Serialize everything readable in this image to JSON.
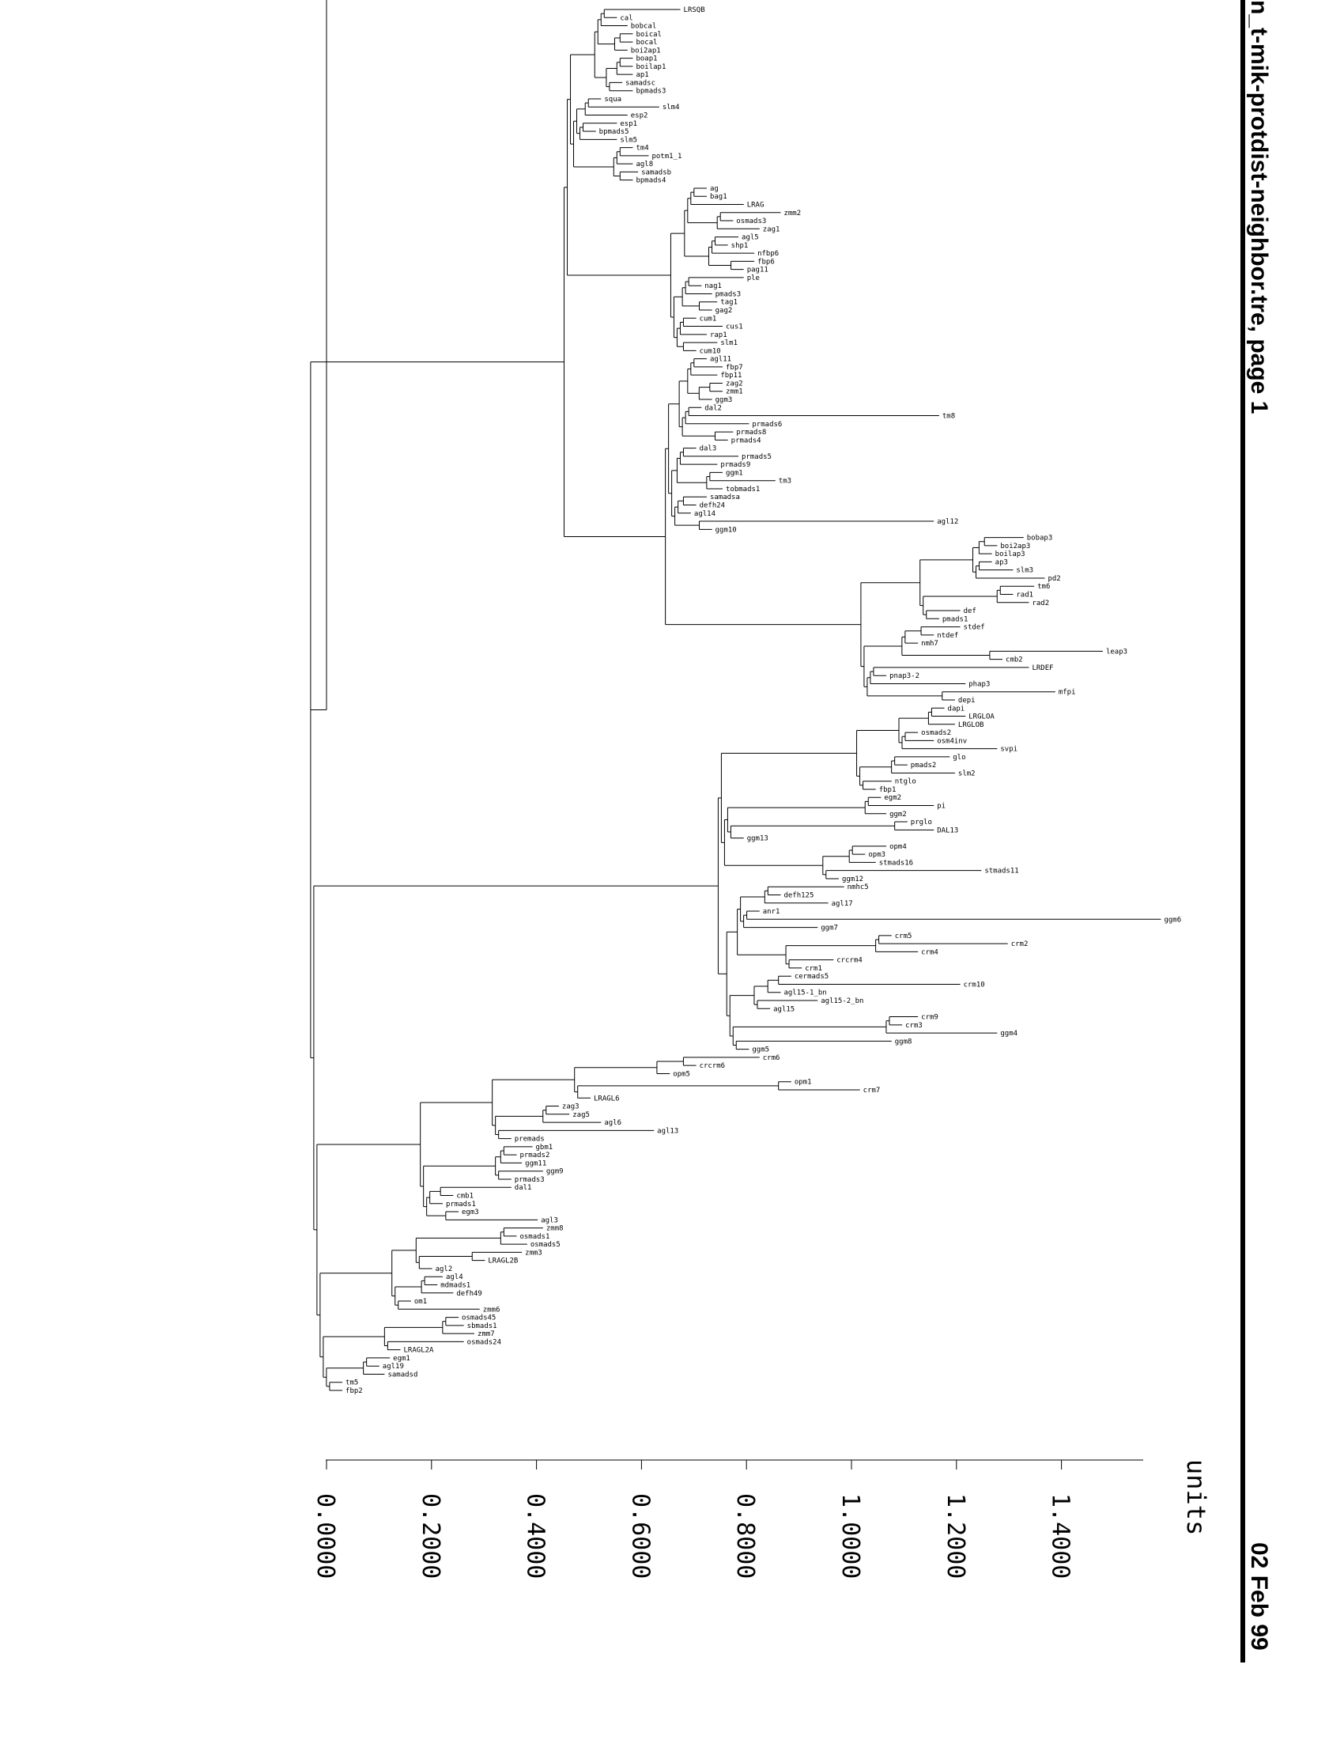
{
  "header": {
    "title": "n_t-mik-protdist-neighbor.tre, page 1",
    "date": "02 Feb 99"
  },
  "scale": {
    "units_label": "units",
    "ticks": [
      "0.0000",
      "0.2000",
      "0.4000",
      "0.6000",
      "0.8000",
      "1.0000",
      "1.2000",
      "1.4000"
    ]
  },
  "tree": {
    "leaves": [
      {
        "name": "LRSQB",
        "depth": 0.67
      },
      {
        "name": "cal",
        "depth": 0.55
      },
      {
        "name": "bobcal",
        "depth": 0.57
      },
      {
        "name": "boical",
        "depth": 0.58
      },
      {
        "name": "bocal",
        "depth": 0.58
      },
      {
        "name": "boi2ap1",
        "depth": 0.57
      },
      {
        "name": "boap1",
        "depth": 0.58
      },
      {
        "name": "boilap1",
        "depth": 0.58
      },
      {
        "name": "ap1",
        "depth": 0.58
      },
      {
        "name": "samadsc",
        "depth": 0.56
      },
      {
        "name": "bpmads3",
        "depth": 0.58
      },
      {
        "name": "squa",
        "depth": 0.52
      },
      {
        "name": "slm4",
        "depth": 0.63
      },
      {
        "name": "esp2",
        "depth": 0.57
      },
      {
        "name": "esp1",
        "depth": 0.55
      },
      {
        "name": "bpmads5",
        "depth": 0.51
      },
      {
        "name": "slm5",
        "depth": 0.55
      },
      {
        "name": "tm4",
        "depth": 0.58
      },
      {
        "name": "potm1_1",
        "depth": 0.61
      },
      {
        "name": "agl8",
        "depth": 0.58
      },
      {
        "name": "samadsb",
        "depth": 0.59
      },
      {
        "name": "bpmads4",
        "depth": 0.58
      },
      {
        "name": "ag",
        "depth": 0.72
      },
      {
        "name": "bag1",
        "depth": 0.72
      },
      {
        "name": "LRAG",
        "depth": 0.79
      },
      {
        "name": "zmm2",
        "depth": 0.86
      },
      {
        "name": "osmads3",
        "depth": 0.77
      },
      {
        "name": "zag1",
        "depth": 0.82
      },
      {
        "name": "agl5",
        "depth": 0.78
      },
      {
        "name": "shp1",
        "depth": 0.76
      },
      {
        "name": "nfbp6",
        "depth": 0.81
      },
      {
        "name": "fbp6",
        "depth": 0.81
      },
      {
        "name": "pag11",
        "depth": 0.79
      },
      {
        "name": "ple",
        "depth": 0.79
      },
      {
        "name": "nag1",
        "depth": 0.71
      },
      {
        "name": "pmads3",
        "depth": 0.73
      },
      {
        "name": "tag1",
        "depth": 0.74
      },
      {
        "name": "gag2",
        "depth": 0.73
      },
      {
        "name": "cum1",
        "depth": 0.7
      },
      {
        "name": "cus1",
        "depth": 0.75
      },
      {
        "name": "rap1",
        "depth": 0.72
      },
      {
        "name": "slm1",
        "depth": 0.74
      },
      {
        "name": "cum10",
        "depth": 0.7
      },
      {
        "name": "agl11",
        "depth": 0.72
      },
      {
        "name": "fbp7",
        "depth": 0.75
      },
      {
        "name": "fbp11",
        "depth": 0.74
      },
      {
        "name": "zag2",
        "depth": 0.75
      },
      {
        "name": "zmm1",
        "depth": 0.75
      },
      {
        "name": "ggm3",
        "depth": 0.73
      },
      {
        "name": "dal2",
        "depth": 0.71
      },
      {
        "name": "tm8",
        "depth": 1.16
      },
      {
        "name": "prmads6",
        "depth": 0.8
      },
      {
        "name": "prmads8",
        "depth": 0.77
      },
      {
        "name": "prmads4",
        "depth": 0.76
      },
      {
        "name": "dal3",
        "depth": 0.7
      },
      {
        "name": "prmads5",
        "depth": 0.78
      },
      {
        "name": "prmads9",
        "depth": 0.74
      },
      {
        "name": "ggm1",
        "depth": 0.75
      },
      {
        "name": "tm3",
        "depth": 0.85
      },
      {
        "name": "tobmads1",
        "depth": 0.75
      },
      {
        "name": "samadsa",
        "depth": 0.72
      },
      {
        "name": "defh24",
        "depth": 0.7
      },
      {
        "name": "agl14",
        "depth": 0.69
      },
      {
        "name": "agl12",
        "depth": 1.15
      },
      {
        "name": "ggm10",
        "depth": 0.73
      },
      {
        "name": "bobap3",
        "depth": 1.32
      },
      {
        "name": "boi2ap3",
        "depth": 1.27
      },
      {
        "name": "boilap3",
        "depth": 1.26
      },
      {
        "name": "ap3",
        "depth": 1.26
      },
      {
        "name": "slm3",
        "depth": 1.3
      },
      {
        "name": "pd2",
        "depth": 1.36
      },
      {
        "name": "tm6",
        "depth": 1.34
      },
      {
        "name": "rad1",
        "depth": 1.3
      },
      {
        "name": "rad2",
        "depth": 1.33
      },
      {
        "name": "def",
        "depth": 1.2
      },
      {
        "name": "pmads1",
        "depth": 1.16
      },
      {
        "name": "stdef",
        "depth": 1.2
      },
      {
        "name": "ntdef",
        "depth": 1.15
      },
      {
        "name": "nmh7",
        "depth": 1.12
      },
      {
        "name": "leap3",
        "depth": 1.47
      },
      {
        "name": "cmb2",
        "depth": 1.28
      },
      {
        "name": "LRDEF",
        "depth": 1.33
      },
      {
        "name": "pnap3-2",
        "depth": 1.06
      },
      {
        "name": "phap3",
        "depth": 1.21
      },
      {
        "name": "mfpi",
        "depth": 1.38
      },
      {
        "name": "depi",
        "depth": 1.19
      },
      {
        "name": "dapi",
        "depth": 1.17
      },
      {
        "name": "LRGLOA",
        "depth": 1.21
      },
      {
        "name": "LRGLOB",
        "depth": 1.19
      },
      {
        "name": "osmads2",
        "depth": 1.12
      },
      {
        "name": "osm4inv",
        "depth": 1.15
      },
      {
        "name": "svpi",
        "depth": 1.27
      },
      {
        "name": "glo",
        "depth": 1.18
      },
      {
        "name": "pmads2",
        "depth": 1.1
      },
      {
        "name": "slm2",
        "depth": 1.19
      },
      {
        "name": "ntglo",
        "depth": 1.07
      },
      {
        "name": "fbp1",
        "depth": 1.04
      },
      {
        "name": "egm2",
        "depth": 1.05
      },
      {
        "name": "pi",
        "depth": 1.15
      },
      {
        "name": "ggm2",
        "depth": 1.06
      },
      {
        "name": "prglo",
        "depth": 1.1
      },
      {
        "name": "DAL13",
        "depth": 1.15
      },
      {
        "name": "ggm13",
        "depth": 0.79
      },
      {
        "name": "opm4",
        "depth": 1.06
      },
      {
        "name": "opm3",
        "depth": 1.02
      },
      {
        "name": "stmads16",
        "depth": 1.04
      },
      {
        "name": "stmads11",
        "depth": 1.24
      },
      {
        "name": "ggm12",
        "depth": 0.97
      },
      {
        "name": "nmhc5",
        "depth": 0.98
      },
      {
        "name": "defh125",
        "depth": 0.86
      },
      {
        "name": "agl17",
        "depth": 0.95
      },
      {
        "name": "anr1",
        "depth": 0.82
      },
      {
        "name": "ggm6",
        "depth": 1.58
      },
      {
        "name": "ggm7",
        "depth": 0.93
      },
      {
        "name": "crm5",
        "depth": 1.07
      },
      {
        "name": "crm2",
        "depth": 1.29
      },
      {
        "name": "crm4",
        "depth": 1.12
      },
      {
        "name": "crcrm4",
        "depth": 0.96
      },
      {
        "name": "crm1",
        "depth": 0.9
      },
      {
        "name": "cermads5",
        "depth": 0.88
      },
      {
        "name": "crm10",
        "depth": 1.2
      },
      {
        "name": "agl15-1_bn",
        "depth": 0.86
      },
      {
        "name": "agl15-2_bn",
        "depth": 0.93
      },
      {
        "name": "agl15",
        "depth": 0.84
      },
      {
        "name": "crm9",
        "depth": 1.12
      },
      {
        "name": "crm3",
        "depth": 1.09
      },
      {
        "name": "ggm4",
        "depth": 1.27
      },
      {
        "name": "ggm8",
        "depth": 1.07
      },
      {
        "name": "ggm5",
        "depth": 0.8
      },
      {
        "name": "crm6",
        "depth": 0.82
      },
      {
        "name": "crcrm6",
        "depth": 0.7
      },
      {
        "name": "opm5",
        "depth": 0.65
      },
      {
        "name": "opm1",
        "depth": 0.88
      },
      {
        "name": "crm7",
        "depth": 1.01
      },
      {
        "name": "LRAGL6",
        "depth": 0.5
      },
      {
        "name": "zag3",
        "depth": 0.44
      },
      {
        "name": "zag5",
        "depth": 0.46
      },
      {
        "name": "agl6",
        "depth": 0.52
      },
      {
        "name": "agl13",
        "depth": 0.62
      },
      {
        "name": "premads",
        "depth": 0.35
      },
      {
        "name": "gbm1",
        "depth": 0.39
      },
      {
        "name": "prmads2",
        "depth": 0.36
      },
      {
        "name": "ggm11",
        "depth": 0.37
      },
      {
        "name": "ggm9",
        "depth": 0.41
      },
      {
        "name": "prmads3",
        "depth": 0.35
      },
      {
        "name": "dal1",
        "depth": 0.35
      },
      {
        "name": "cmb1",
        "depth": 0.24
      },
      {
        "name": "prmads1",
        "depth": 0.22
      },
      {
        "name": "egm3",
        "depth": 0.25
      },
      {
        "name": "agl3",
        "depth": 0.4
      },
      {
        "name": "zmm8",
        "depth": 0.41
      },
      {
        "name": "osmads1",
        "depth": 0.36
      },
      {
        "name": "osmads5",
        "depth": 0.38
      },
      {
        "name": "zmm3",
        "depth": 0.37
      },
      {
        "name": "LRAGL2B",
        "depth": 0.3
      },
      {
        "name": "agl2",
        "depth": 0.2
      },
      {
        "name": "agl4",
        "depth": 0.22
      },
      {
        "name": "mdmads1",
        "depth": 0.21
      },
      {
        "name": "defh49",
        "depth": 0.24
      },
      {
        "name": "om1",
        "depth": 0.16
      },
      {
        "name": "zmm6",
        "depth": 0.29
      },
      {
        "name": "osmads45",
        "depth": 0.25
      },
      {
        "name": "sbmads1",
        "depth": 0.26
      },
      {
        "name": "zmm7",
        "depth": 0.28
      },
      {
        "name": "osmads24",
        "depth": 0.26
      },
      {
        "name": "LRAGL2A",
        "depth": 0.14
      },
      {
        "name": "egm1",
        "depth": 0.12
      },
      {
        "name": "agl19",
        "depth": 0.1
      },
      {
        "name": "samadsd",
        "depth": 0.11
      },
      {
        "name": "tm5",
        "depth": 0.03
      },
      {
        "name": "fbp2",
        "depth": 0.03
      }
    ]
  }
}
